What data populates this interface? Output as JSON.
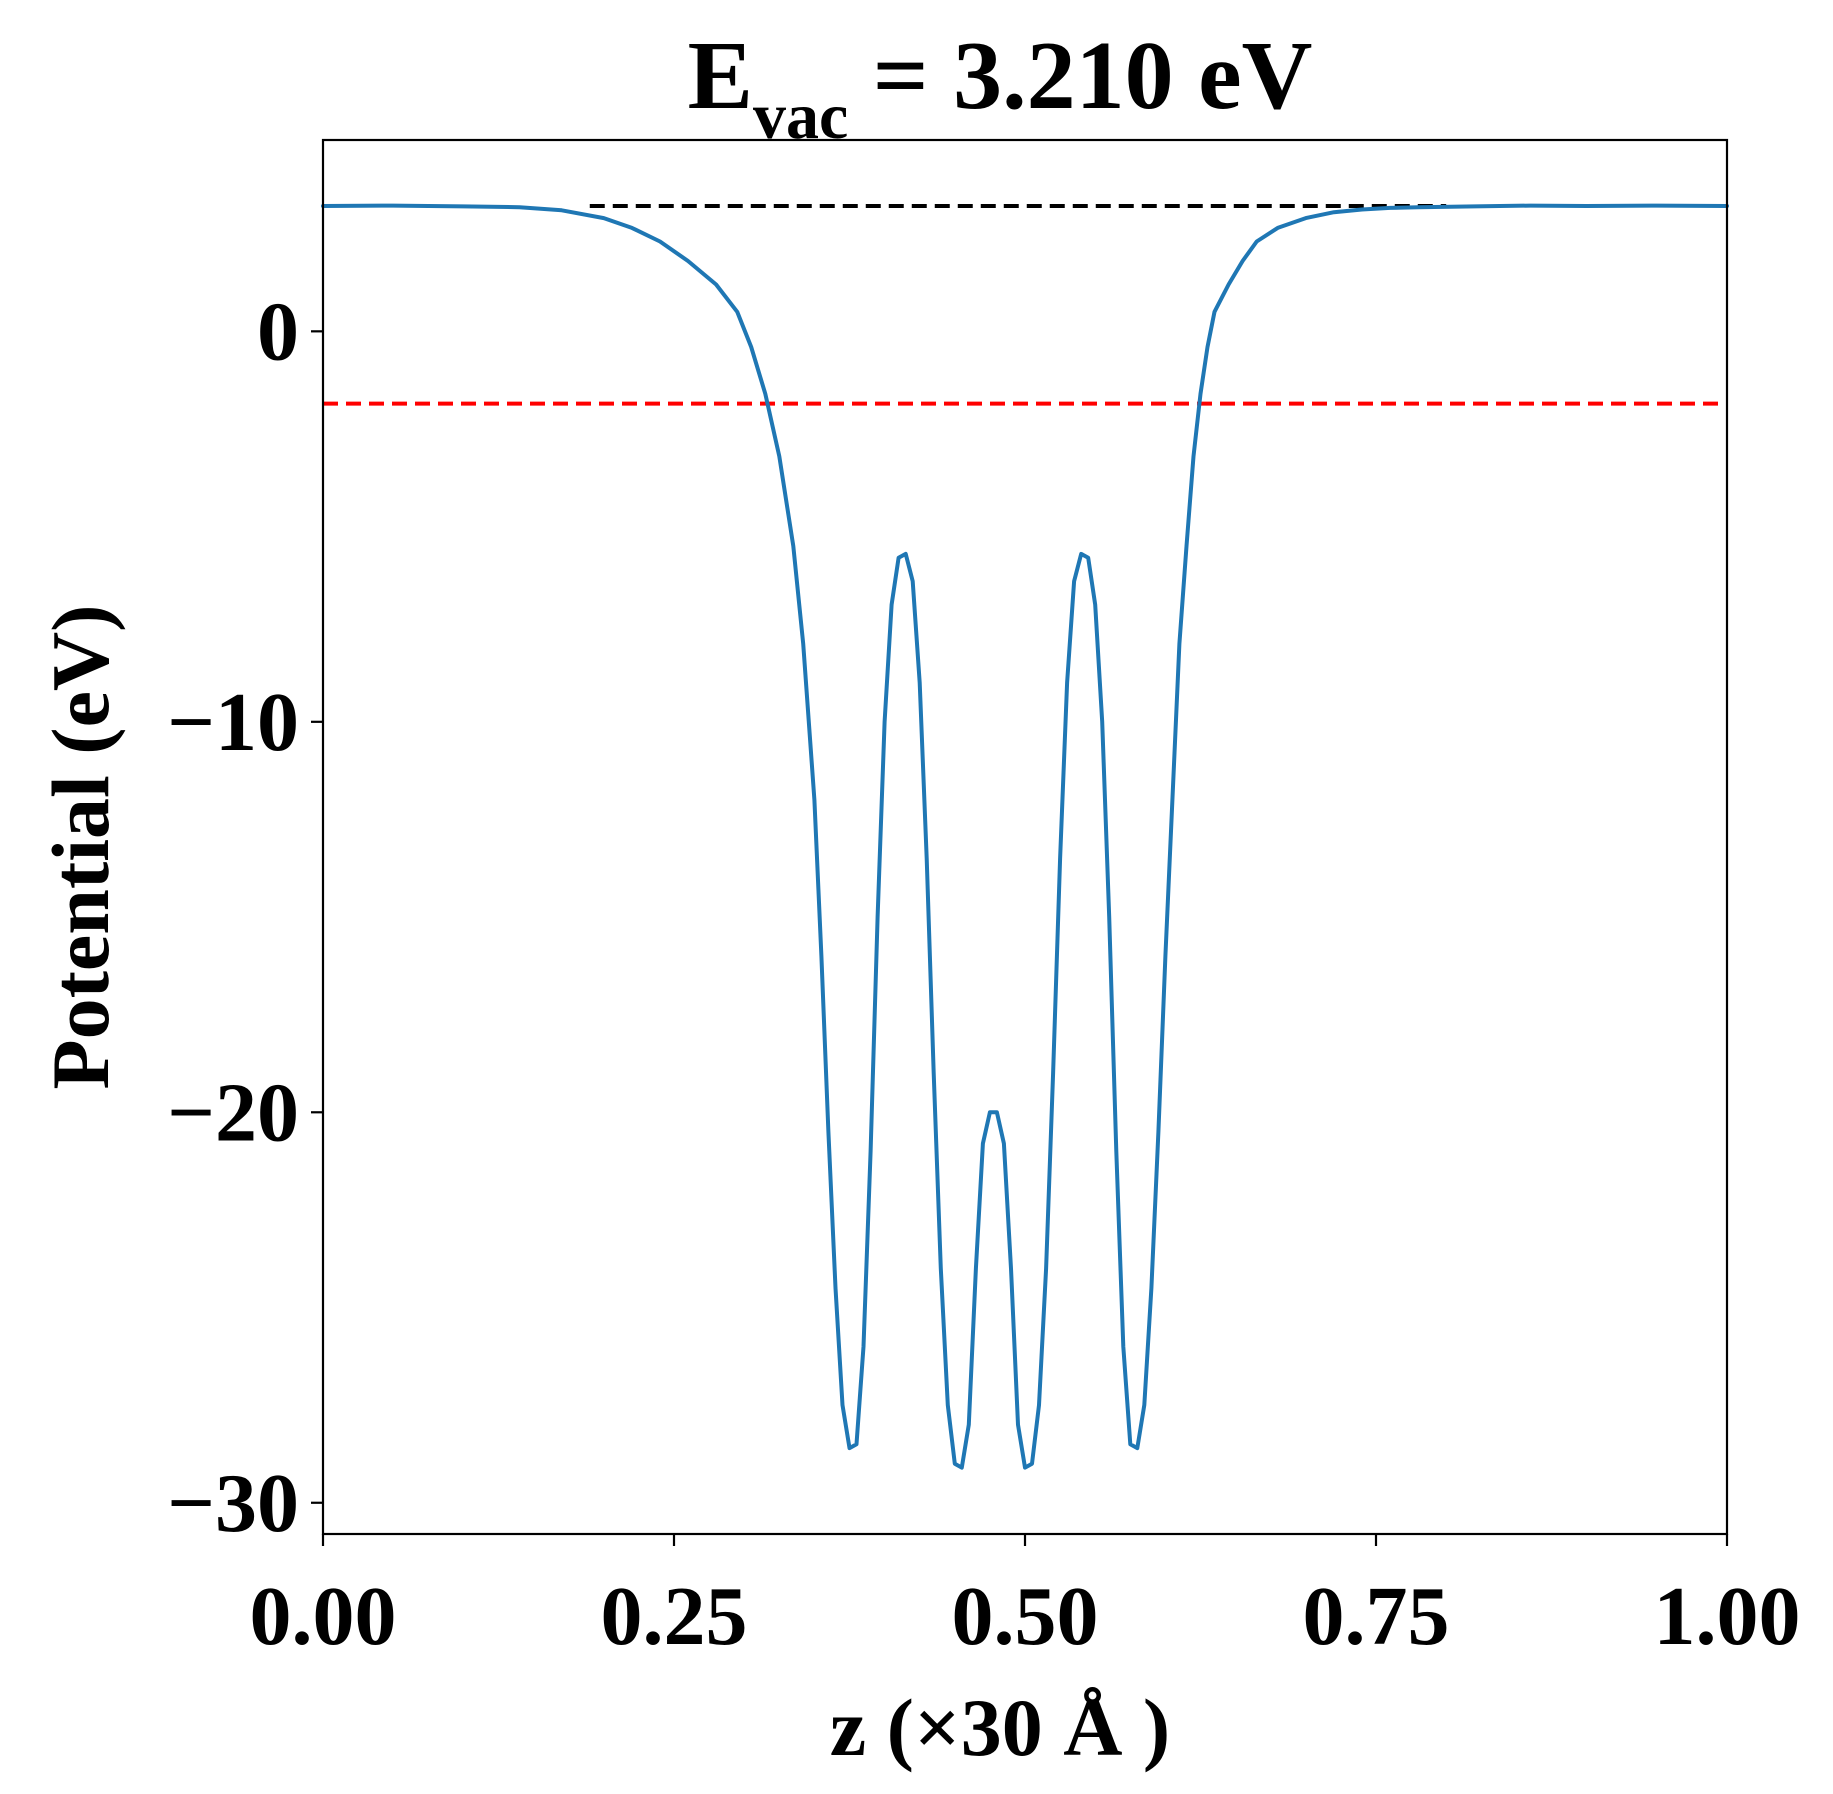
{
  "chart_data": {
    "type": "line",
    "title": {
      "main": "E",
      "subscript": "vac",
      "rest": " = 3.210 eV"
    },
    "xlabel": "z (×30 Å )",
    "ylabel": "Potential (eV)",
    "xlim": [
      0.0,
      1.0
    ],
    "ylim": [
      -30.8,
      4.9
    ],
    "xticks": [
      0.0,
      0.25,
      0.5,
      0.75,
      1.0
    ],
    "xtick_labels": [
      "0.00",
      "0.25",
      "0.50",
      "0.75",
      "1.00"
    ],
    "yticks": [
      0,
      -10,
      -20,
      -30
    ],
    "ytick_labels": [
      "0",
      "−10",
      "−20",
      "−30"
    ],
    "grid": false,
    "legend": "none",
    "reference_lines": [
      {
        "value": 3.21,
        "color": "#000000",
        "style": "dashed",
        "x_start": 0.19,
        "x_end": 0.8
      },
      {
        "value": -1.85,
        "color": "#ff0000",
        "style": "dashed",
        "x_start": 0.0,
        "x_end": 1.0
      }
    ],
    "series": [
      {
        "color": "#1f77b4",
        "x": [
          0.0,
          0.05,
          0.1,
          0.14,
          0.17,
          0.2,
          0.22,
          0.24,
          0.26,
          0.28,
          0.295,
          0.305,
          0.315,
          0.325,
          0.335,
          0.342,
          0.35,
          0.355,
          0.36,
          0.365,
          0.37,
          0.375,
          0.38,
          0.385,
          0.39,
          0.395,
          0.4,
          0.405,
          0.41,
          0.415,
          0.42,
          0.425,
          0.43,
          0.435,
          0.44,
          0.445,
          0.45,
          0.455,
          0.46,
          0.465,
          0.47,
          0.475,
          0.48,
          0.485,
          0.49,
          0.495,
          0.5,
          0.505,
          0.51,
          0.515,
          0.52,
          0.525,
          0.53,
          0.535,
          0.54,
          0.545,
          0.55,
          0.555,
          0.56,
          0.565,
          0.57,
          0.575,
          0.58,
          0.585,
          0.59,
          0.595,
          0.6,
          0.605,
          0.61,
          0.615,
          0.62,
          0.625,
          0.63,
          0.635,
          0.645,
          0.655,
          0.665,
          0.68,
          0.7,
          0.72,
          0.74,
          0.76,
          0.78,
          0.82,
          0.86,
          0.9,
          0.95,
          1.0
        ],
        "y": [
          3.21,
          3.22,
          3.2,
          3.18,
          3.1,
          2.9,
          2.65,
          2.3,
          1.8,
          1.2,
          0.5,
          -0.4,
          -1.6,
          -3.2,
          -5.5,
          -8.0,
          -12.0,
          -16.0,
          -20.5,
          -24.5,
          -27.5,
          -28.6,
          -28.5,
          -26.0,
          -21.0,
          -15.0,
          -10.0,
          -7.0,
          -5.8,
          -5.7,
          -6.4,
          -9.0,
          -13.5,
          -19.0,
          -24.0,
          -27.5,
          -29.0,
          -29.1,
          -28.0,
          -24.0,
          -20.8,
          -20.0,
          -20.0,
          -20.8,
          -24.0,
          -28.0,
          -29.1,
          -29.0,
          -27.5,
          -24.0,
          -19.0,
          -13.5,
          -9.0,
          -6.4,
          -5.7,
          -5.8,
          -7.0,
          -10.0,
          -15.0,
          -21.0,
          -26.0,
          -28.5,
          -28.6,
          -27.5,
          -24.5,
          -20.5,
          -16.0,
          -12.0,
          -8.0,
          -5.5,
          -3.2,
          -1.6,
          -0.4,
          0.5,
          1.2,
          1.8,
          2.3,
          2.65,
          2.9,
          3.05,
          3.12,
          3.16,
          3.18,
          3.2,
          3.22,
          3.21,
          3.22,
          3.21
        ]
      }
    ]
  }
}
